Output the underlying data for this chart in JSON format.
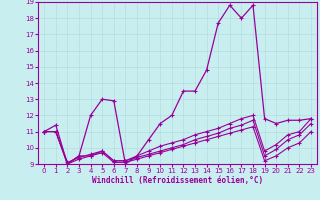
{
  "xlabel": "Windchill (Refroidissement éolien,°C)",
  "bg_color": "#c8eef0",
  "line_color": "#990099",
  "xlim": [
    -0.5,
    23.5
  ],
  "ylim": [
    9,
    19
  ],
  "xticks": [
    0,
    1,
    2,
    3,
    4,
    5,
    6,
    7,
    8,
    9,
    10,
    11,
    12,
    13,
    14,
    15,
    16,
    17,
    18,
    19,
    20,
    21,
    22,
    23
  ],
  "yticks": [
    9,
    10,
    11,
    12,
    13,
    14,
    15,
    16,
    17,
    18,
    19
  ],
  "main_x": [
    0,
    1,
    2,
    3,
    4,
    5,
    6,
    7,
    8,
    9,
    10,
    11,
    12,
    13,
    14,
    15,
    16,
    17,
    18,
    19,
    20,
    21,
    22,
    23
  ],
  "main_y": [
    11.0,
    11.4,
    9.0,
    9.5,
    12.0,
    13.0,
    12.9,
    9.0,
    9.5,
    10.5,
    11.5,
    12.0,
    13.5,
    13.5,
    14.8,
    17.7,
    18.8,
    18.0,
    18.8,
    11.8,
    11.5,
    11.7,
    11.7,
    11.8
  ],
  "line2_y": [
    11.0,
    11.0,
    9.0,
    9.5,
    9.5,
    9.8,
    9.2,
    9.2,
    9.5,
    9.8,
    10.1,
    10.3,
    10.5,
    10.8,
    11.0,
    11.2,
    11.5,
    11.8,
    12.0,
    9.8,
    10.2,
    10.8,
    11.0,
    11.8
  ],
  "line3_y": [
    11.0,
    11.0,
    9.1,
    9.4,
    9.6,
    9.8,
    9.2,
    9.2,
    9.4,
    9.6,
    9.8,
    10.0,
    10.2,
    10.5,
    10.7,
    10.9,
    11.2,
    11.4,
    11.7,
    9.5,
    9.9,
    10.5,
    10.8,
    11.5
  ],
  "line4_y": [
    11.0,
    11.0,
    9.0,
    9.3,
    9.5,
    9.7,
    9.1,
    9.1,
    9.3,
    9.5,
    9.7,
    9.9,
    10.1,
    10.3,
    10.5,
    10.7,
    10.9,
    11.1,
    11.3,
    9.2,
    9.5,
    10.0,
    10.3,
    11.0
  ]
}
